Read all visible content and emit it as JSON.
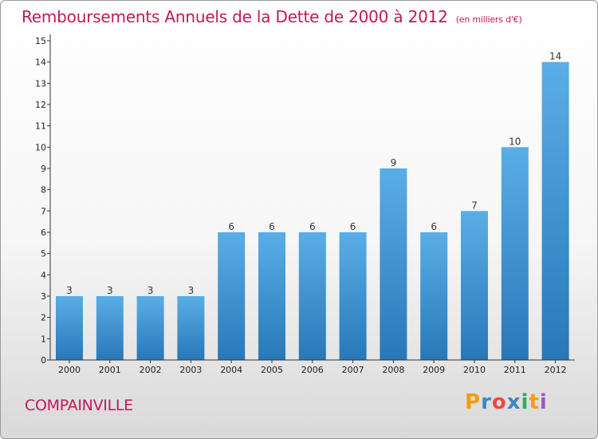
{
  "title": "Remboursements Annuels de la Dette de 2000 à 2012",
  "unit": "(en milliers d'€)",
  "commune": "COMPAINVILLE",
  "logo": {
    "letters": [
      "P",
      "r",
      "o",
      "x",
      "i",
      "t",
      "i"
    ],
    "colors": [
      "#f39c12",
      "#3a87c8",
      "#e74c3c",
      "#3a87c8",
      "#27ae60",
      "#f39c12",
      "#9b59b6"
    ]
  },
  "colors": {
    "title": "#c2185b",
    "bar_top": "#5aaee6",
    "bar_bottom": "#2878b8",
    "axis": "#333333"
  },
  "chart_data": {
    "type": "bar",
    "categories": [
      "2000",
      "2001",
      "2002",
      "2003",
      "2004",
      "2005",
      "2006",
      "2007",
      "2008",
      "2009",
      "2010",
      "2011",
      "2012"
    ],
    "values": [
      3,
      3,
      3,
      3,
      6,
      6,
      6,
      6,
      9,
      6,
      7,
      10,
      14
    ],
    "ylim": [
      0,
      15
    ],
    "yticks": [
      0,
      1,
      2,
      3,
      4,
      5,
      6,
      7,
      8,
      9,
      10,
      11,
      12,
      13,
      14,
      15
    ],
    "grid": false,
    "data_labels": true
  }
}
